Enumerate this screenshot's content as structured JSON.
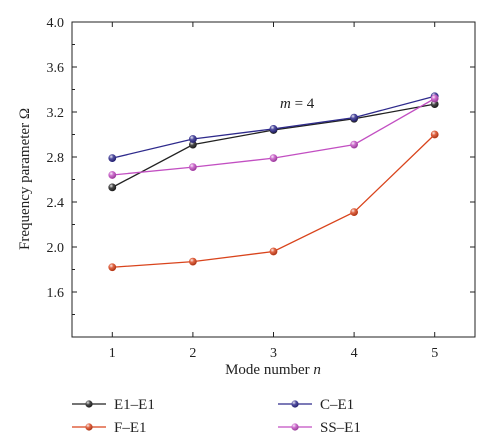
{
  "chart_data": {
    "type": "line",
    "title": "",
    "xlabel_main": "Mode number ",
    "xlabel_var": "n",
    "ylabel": "Frequency parameter Ω",
    "annotation_var": "m",
    "annotation_rest": " = 4",
    "xlim": [
      0.5,
      5.5
    ],
    "ylim": [
      1.2,
      4.0
    ],
    "x": [
      1,
      2,
      3,
      4,
      5
    ],
    "x_ticks": [
      "1",
      "2",
      "3",
      "4",
      "5"
    ],
    "y_ticks": [
      "1.6",
      "2.0",
      "2.4",
      "2.8",
      "3.2",
      "3.6",
      "4.0"
    ],
    "y_tick_values": [
      1.6,
      2.0,
      2.4,
      2.8,
      3.2,
      3.6,
      4.0
    ],
    "grid": false,
    "legend_position": "bottom",
    "series": [
      {
        "name": "E1–E1",
        "color": "#222222",
        "values": [
          2.53,
          2.91,
          3.04,
          3.14,
          3.27
        ]
      },
      {
        "name": "C–E1",
        "color": "#2e2a8c",
        "values": [
          2.79,
          2.96,
          3.05,
          3.15,
          3.34
        ]
      },
      {
        "name": "F–E1",
        "color": "#d9441c",
        "values": [
          1.82,
          1.87,
          1.96,
          2.31,
          3.0
        ]
      },
      {
        "name": "SS–E1",
        "color": "#c24fc2",
        "values": [
          2.64,
          2.71,
          2.79,
          2.91,
          3.32
        ]
      }
    ]
  }
}
